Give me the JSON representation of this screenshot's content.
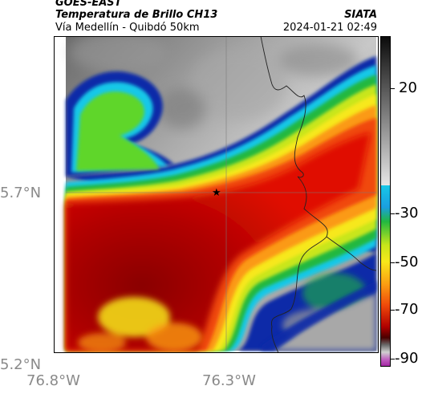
{
  "header": {
    "satellite": "GOES-EAST",
    "product": "Temperatura de Brillo CH13",
    "region": "Vía Medellín - Quibdó 50km",
    "agency": "SIATA",
    "datetime": "2024-01-21 02:49"
  },
  "axes": {
    "lat_ticks": [
      "5.7°N",
      "5.2°N"
    ],
    "lon_ticks": [
      "76.8°W",
      "76.3°W"
    ]
  },
  "colorbar": {
    "ticks": [
      "20",
      "-30",
      "-50",
      "-70",
      "-90"
    ]
  },
  "marker": {
    "symbol": "★"
  }
}
